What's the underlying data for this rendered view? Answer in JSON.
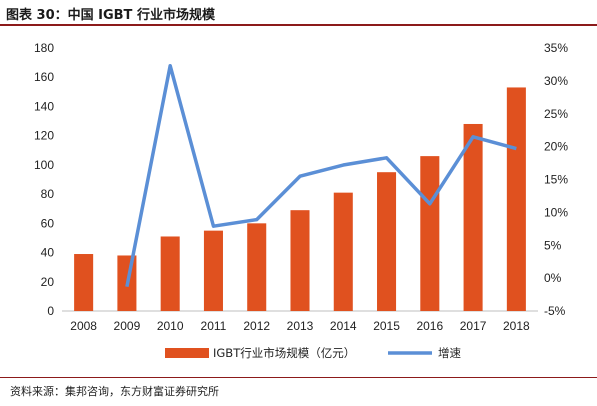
{
  "header": {
    "title": "图表 30：中国 IGBT 行业市场规模"
  },
  "footer": {
    "source": "资料来源：集邦咨询，东方财富证券研究所"
  },
  "colors": {
    "bar": "#e0511f",
    "line": "#5b8fd6",
    "rule": "#8c1a1a"
  },
  "chart_data": {
    "type": "bar+line",
    "categories": [
      "2008",
      "2009",
      "2010",
      "2011",
      "2012",
      "2013",
      "2014",
      "2015",
      "2016",
      "2017",
      "2018"
    ],
    "series": [
      {
        "name": "IGBT行业市场规模（亿元）",
        "type": "bar",
        "axis": "left",
        "values": [
          39,
          38,
          51,
          55,
          60,
          69,
          81,
          95,
          106,
          128,
          153
        ]
      },
      {
        "name": "增速",
        "type": "line",
        "axis": "right",
        "values": [
          -1.3,
          32.3,
          7.9,
          8.9,
          15.5,
          17.2,
          18.3,
          11.3,
          21.5,
          19.7
        ],
        "x": [
          "2009",
          "2010",
          "2011",
          "2012",
          "2013",
          "2014",
          "2015",
          "2016",
          "2017",
          "2018"
        ]
      }
    ],
    "y_left": {
      "min": 0,
      "max": 180,
      "step": 20,
      "tick_labels": [
        "0",
        "20",
        "40",
        "60",
        "80",
        "100",
        "120",
        "140",
        "160",
        "180"
      ]
    },
    "y_right": {
      "min": -5,
      "max": 35,
      "step": 5,
      "tick_labels": [
        "-5%",
        "0%",
        "5%",
        "10%",
        "15%",
        "20%",
        "25%",
        "30%",
        "35%"
      ]
    },
    "legend": {
      "placement": "bottom",
      "entries": [
        "IGBT行业市场规模（亿元）",
        "增速"
      ]
    },
    "grid": false
  }
}
